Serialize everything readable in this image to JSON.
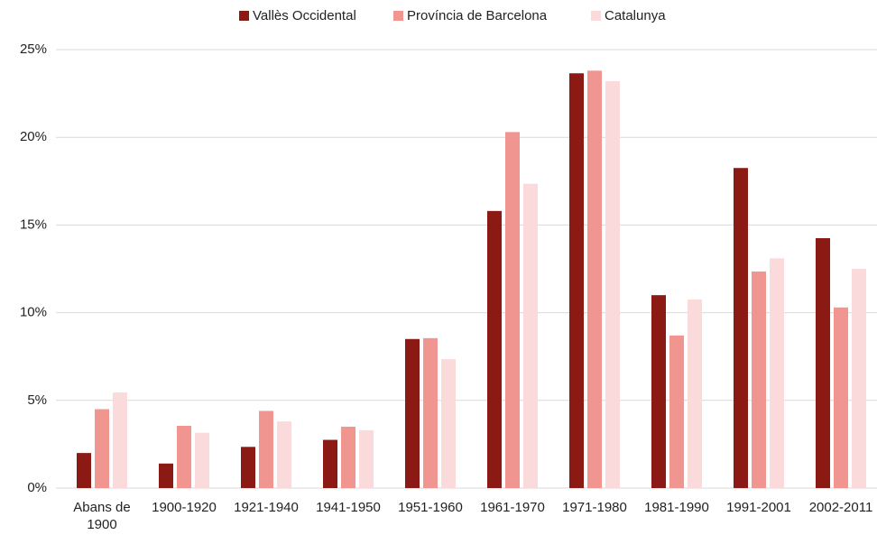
{
  "chart_data": {
    "type": "bar",
    "categories": [
      "Abans de 1900",
      "1900-1920",
      "1921-1940",
      "1941-1950",
      "1951-1960",
      "1961-1970",
      "1971-1980",
      "1981-1990",
      "1991-2001",
      "2002-2011"
    ],
    "series": [
      {
        "name": "Vallès Occidental",
        "color": "#8b1a14",
        "values": [
          2.0,
          1.4,
          2.35,
          2.75,
          8.5,
          15.8,
          23.65,
          11.0,
          18.25,
          14.25
        ]
      },
      {
        "name": "Província de Barcelona",
        "color": "#f0958f",
        "values": [
          4.5,
          3.55,
          4.4,
          3.5,
          8.55,
          20.3,
          23.8,
          8.7,
          12.35,
          10.3
        ]
      },
      {
        "name": "Catalunya",
        "color": "#fadada",
        "values": [
          5.45,
          3.15,
          3.8,
          3.3,
          7.35,
          17.35,
          23.2,
          10.75,
          13.1,
          12.5
        ]
      }
    ],
    "ylim": [
      0,
      25
    ],
    "yticks": [
      {
        "value": 0,
        "label": "0%"
      },
      {
        "value": 5,
        "label": "5%"
      },
      {
        "value": 10,
        "label": "10%"
      },
      {
        "value": 15,
        "label": "15%"
      },
      {
        "value": 20,
        "label": "20%"
      },
      {
        "value": 25,
        "label": "25%"
      }
    ],
    "grid": true,
    "legend": "top"
  }
}
